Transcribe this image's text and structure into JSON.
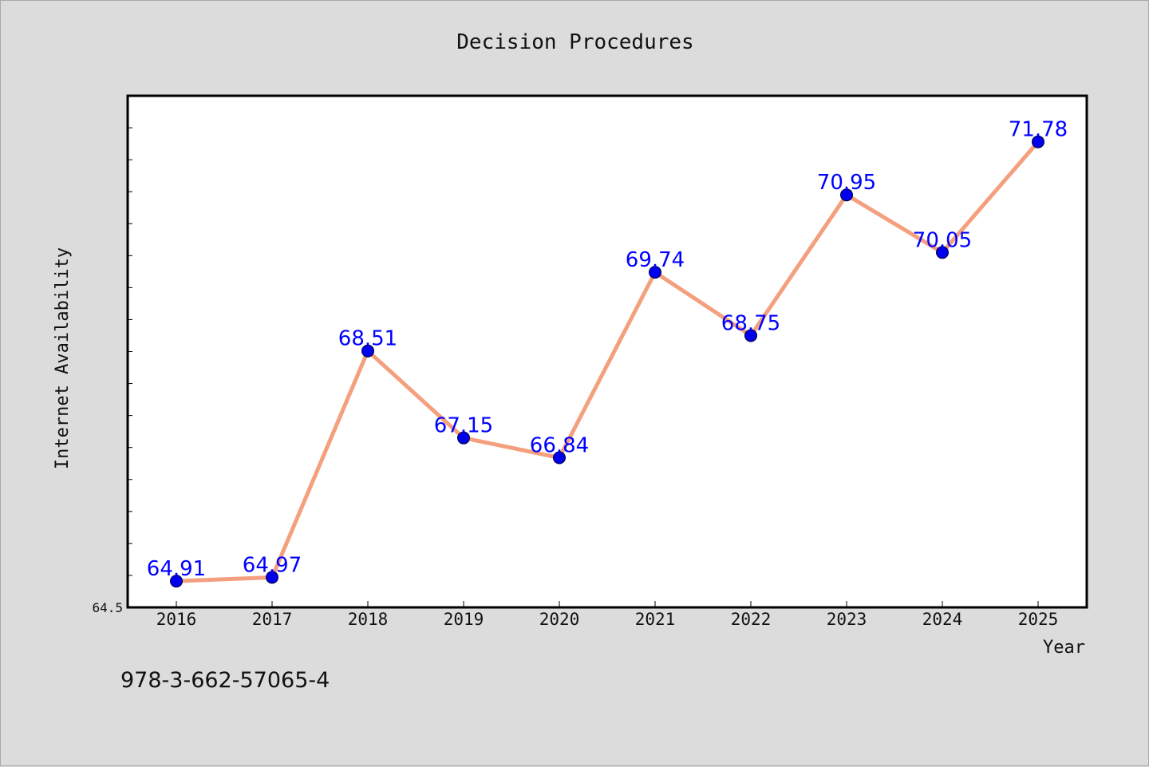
{
  "footer_text": "978-3-662-57065-4",
  "colors": {
    "background": "#dcdcdc",
    "plot_background": "#ffffff",
    "line": "#f4a07e",
    "marker": "#0000ee",
    "data_label": "#0000ff",
    "axis": "#000000"
  },
  "chart_data": {
    "type": "line",
    "title": "Decision Procedures",
    "xlabel": "Year",
    "ylabel": "Internet Availability",
    "categories": [
      "2016",
      "2017",
      "2018",
      "2019",
      "2020",
      "2021",
      "2022",
      "2023",
      "2024",
      "2025"
    ],
    "series": [
      {
        "values": [
          64.91,
          64.97,
          68.51,
          67.15,
          66.84,
          69.74,
          68.75,
          70.95,
          70.05,
          71.78
        ]
      }
    ],
    "data_labels": [
      "64.91",
      "64.97",
      "68.51",
      "67.15",
      "66.84",
      "69.74",
      "68.75",
      "70.95",
      "70.05",
      "71.78"
    ],
    "ylim": [
      64.5,
      72.5
    ],
    "y_tick_label": "64.5",
    "grid": false,
    "legend": "none"
  }
}
